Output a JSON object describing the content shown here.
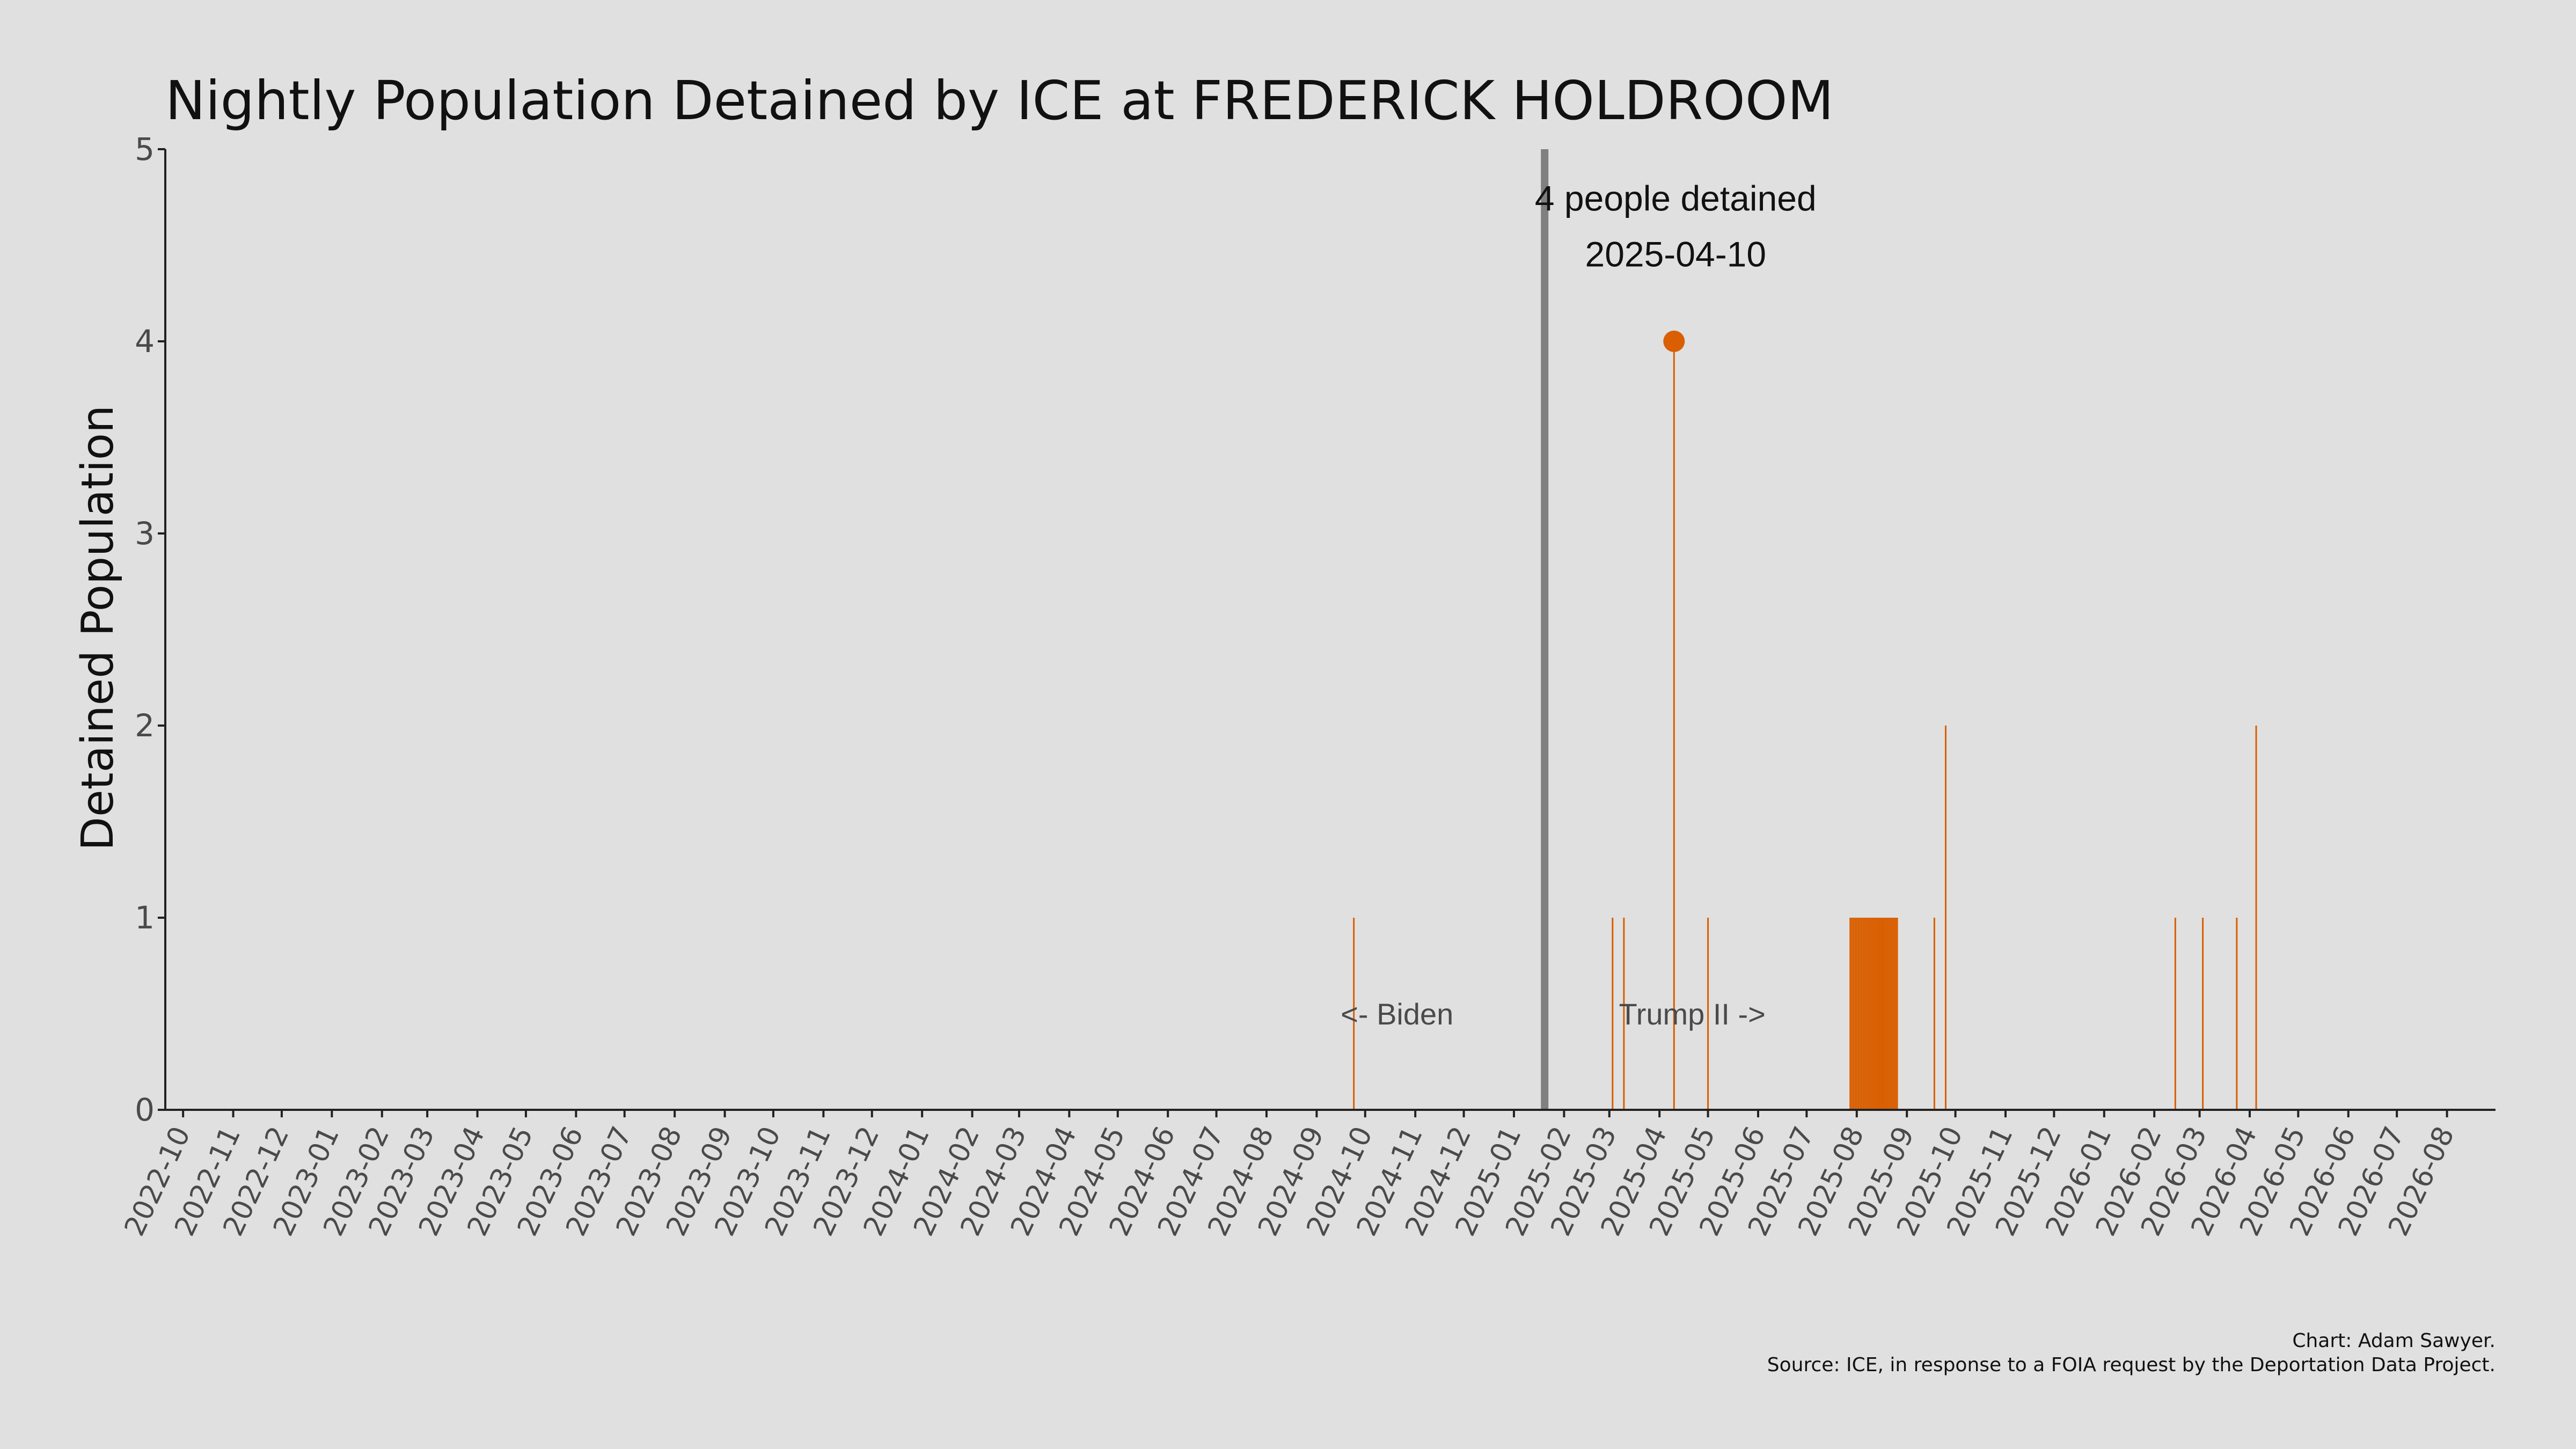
{
  "chart_data": {
    "type": "bar",
    "title": "Nightly Population Detained by ICE at FREDERICK HOLDROOM",
    "xlabel": "",
    "ylabel": "Detained Population",
    "ylim": [
      0,
      5
    ],
    "yticks": [
      0,
      1,
      2,
      3,
      4,
      5
    ],
    "xlim": [
      "2022-09-20",
      "2026-08-31"
    ],
    "xtick_labels": [
      "2022-10",
      "2022-11",
      "2022-12",
      "2023-01",
      "2023-02",
      "2023-03",
      "2023-04",
      "2023-05",
      "2023-06",
      "2023-07",
      "2023-08",
      "2023-09",
      "2023-10",
      "2023-11",
      "2023-12",
      "2024-01",
      "2024-02",
      "2024-03",
      "2024-04",
      "2024-05",
      "2024-06",
      "2024-07",
      "2024-08",
      "2024-09",
      "2024-10",
      "2024-11",
      "2024-12",
      "2025-01",
      "2025-02",
      "2025-03",
      "2025-04",
      "2025-05",
      "2025-06",
      "2025-07",
      "2025-08",
      "2025-09",
      "2025-10",
      "2025-11",
      "2025-12",
      "2026-01",
      "2026-02",
      "2026-03",
      "2026-04",
      "2026-05",
      "2026-06",
      "2026-07",
      "2026-08"
    ],
    "bar_color": "#d95f02",
    "points": [
      {
        "date": "2024-09-24",
        "value": 1
      },
      {
        "date": "2025-03-03",
        "value": 1
      },
      {
        "date": "2025-03-10",
        "value": 1
      },
      {
        "date": "2025-04-10",
        "value": 4
      },
      {
        "date": "2025-05-01",
        "value": 1
      },
      {
        "date": "2025-07-28",
        "value": 1
      },
      {
        "date": "2025-07-29",
        "value": 1
      },
      {
        "date": "2025-07-30",
        "value": 1
      },
      {
        "date": "2025-07-31",
        "value": 1
      },
      {
        "date": "2025-08-01",
        "value": 1
      },
      {
        "date": "2025-08-02",
        "value": 1
      },
      {
        "date": "2025-08-03",
        "value": 1
      },
      {
        "date": "2025-08-04",
        "value": 1
      },
      {
        "date": "2025-08-05",
        "value": 1
      },
      {
        "date": "2025-08-06",
        "value": 1
      },
      {
        "date": "2025-08-07",
        "value": 1
      },
      {
        "date": "2025-08-08",
        "value": 1
      },
      {
        "date": "2025-08-09",
        "value": 1
      },
      {
        "date": "2025-08-10",
        "value": 1
      },
      {
        "date": "2025-08-11",
        "value": 1
      },
      {
        "date": "2025-08-12",
        "value": 1
      },
      {
        "date": "2025-08-13",
        "value": 1
      },
      {
        "date": "2025-08-14",
        "value": 1
      },
      {
        "date": "2025-08-15",
        "value": 1
      },
      {
        "date": "2025-08-16",
        "value": 1
      },
      {
        "date": "2025-08-17",
        "value": 1
      },
      {
        "date": "2025-08-18",
        "value": 1
      },
      {
        "date": "2025-08-19",
        "value": 1
      },
      {
        "date": "2025-08-20",
        "value": 1
      },
      {
        "date": "2025-08-21",
        "value": 1
      },
      {
        "date": "2025-08-22",
        "value": 1
      },
      {
        "date": "2025-08-23",
        "value": 1
      },
      {
        "date": "2025-08-24",
        "value": 1
      },
      {
        "date": "2025-08-25",
        "value": 1
      },
      {
        "date": "2025-08-26",
        "value": 1
      },
      {
        "date": "2025-09-18",
        "value": 1
      },
      {
        "date": "2025-09-25",
        "value": 2
      },
      {
        "date": "2026-02-14",
        "value": 1
      },
      {
        "date": "2026-03-03",
        "value": 1
      },
      {
        "date": "2026-03-24",
        "value": 1
      },
      {
        "date": "2026-04-05",
        "value": 2
      }
    ],
    "highlight": {
      "date": "2025-04-10",
      "value": 4,
      "color": "#d95f02"
    },
    "annotation_lines": [
      "4 people detained",
      "2025-04-10"
    ],
    "divider": {
      "date": "2025-01-20",
      "color": "#808080"
    },
    "era_labels": {
      "before": "<- Biden",
      "after": "Trump II ->"
    },
    "credit_lines": [
      "Chart: Adam Sawyer.",
      "Source: ICE, in response to a FOIA request by the Deportation Data Project."
    ],
    "grid": false,
    "legend": "none"
  }
}
